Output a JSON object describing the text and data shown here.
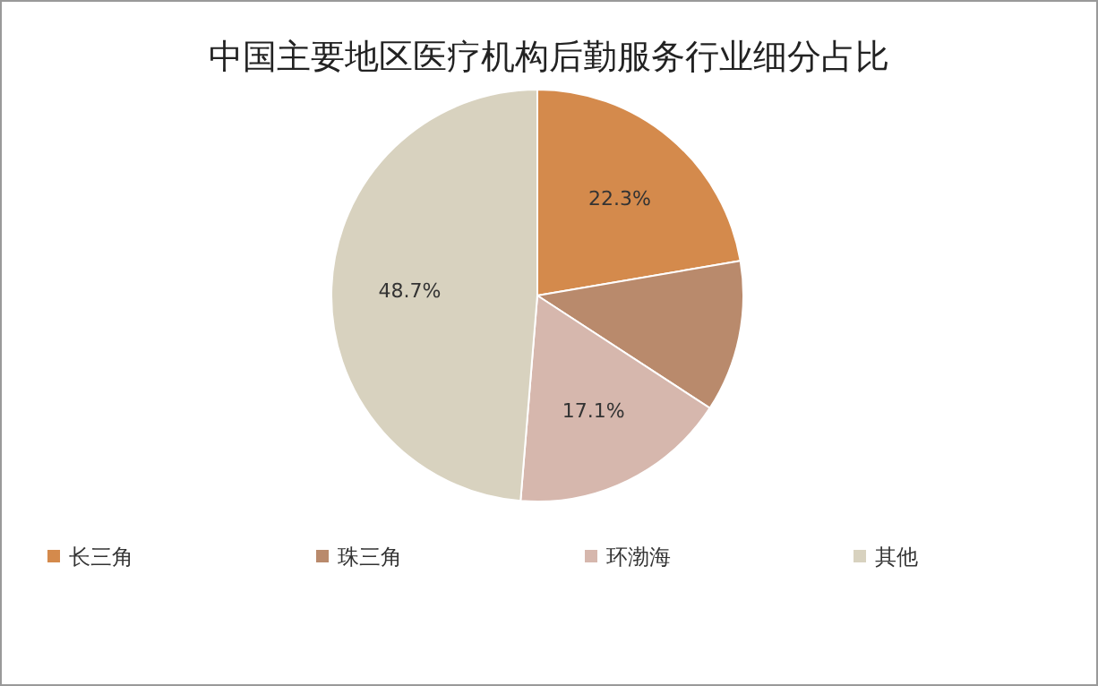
{
  "chart_data": {
    "type": "pie",
    "title": "中国主要地区医疗机构后勤服务行业细分占比",
    "categories": [
      "长三角",
      "珠三角",
      "环渤海",
      "其他"
    ],
    "values": [
      22.3,
      11.9,
      17.1,
      48.7
    ],
    "value_labels": [
      "22.3%",
      null,
      "17.1%",
      "48.7%"
    ],
    "colors": [
      "#d48a4c",
      "#b98a6c",
      "#d6b7ad",
      "#d8d2bf"
    ],
    "legend": "bottom"
  }
}
